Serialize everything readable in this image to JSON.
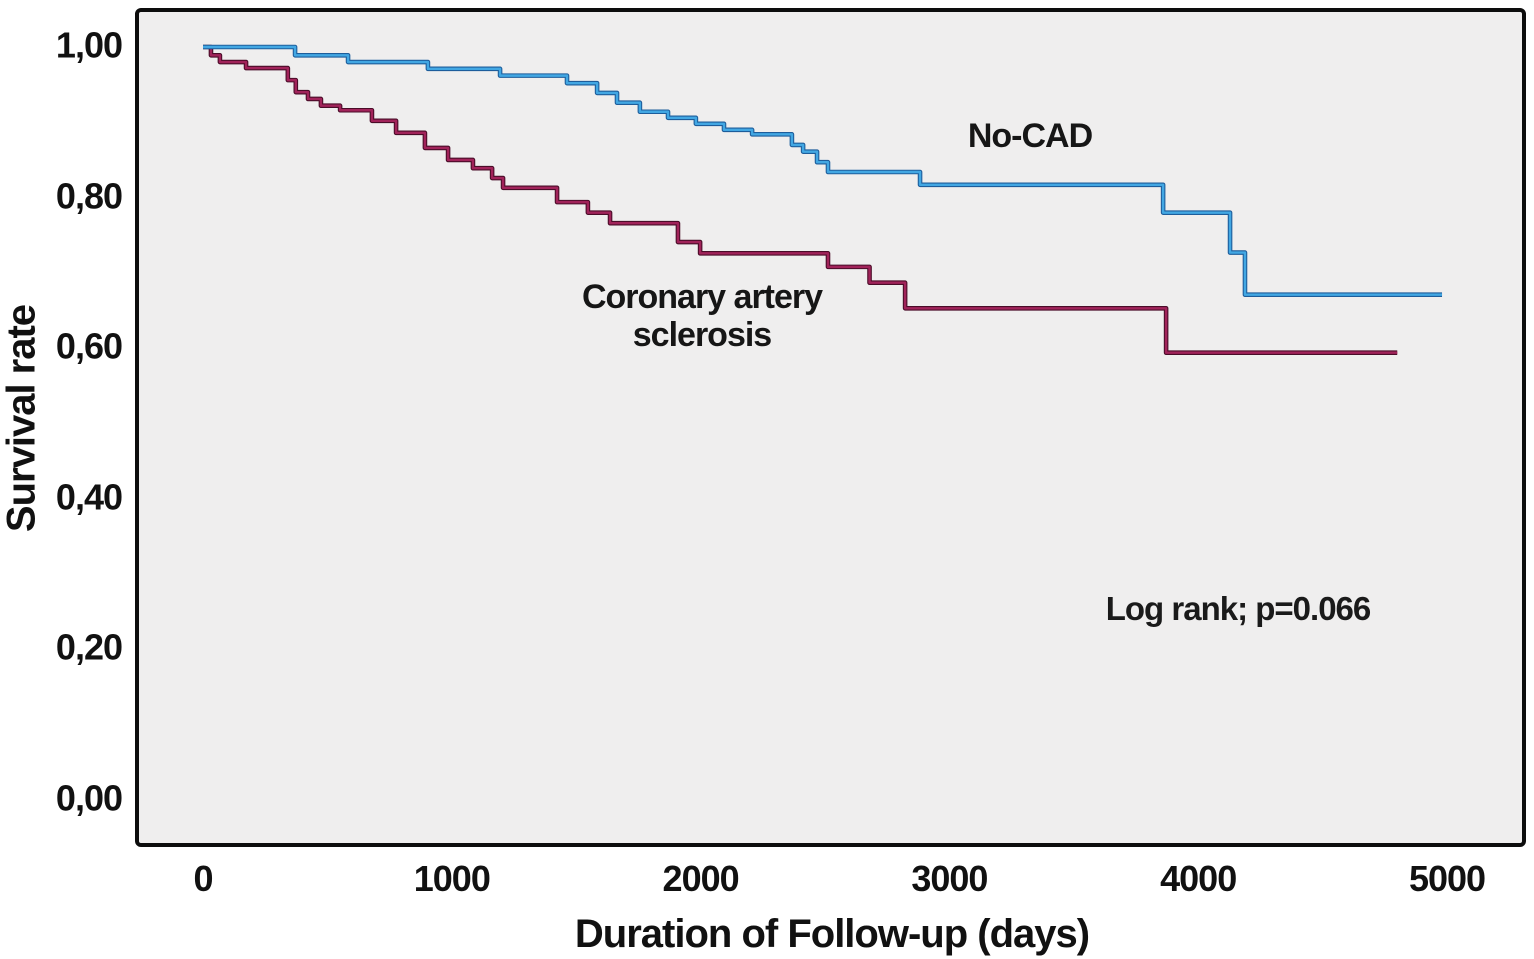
{
  "colors": {
    "plot_background": "#efeeee",
    "frame": "#0d0d0d",
    "text": "#111111",
    "no_cad_line": "#42a7e3",
    "no_cad_edge": "#1d5d9b",
    "cad_line": "#a1235a",
    "cad_edge": "#4a0c28"
  },
  "chart_data": {
    "type": "line",
    "subtype": "kaplan-meier-step",
    "title": "",
    "xlabel": "Duration of Follow-up (days)",
    "ylabel": "Survival rate",
    "xlim": [
      0,
      5000
    ],
    "ylim": [
      0.0,
      1.0
    ],
    "grid": false,
    "legend_position": "inline-labels",
    "x_ticks": {
      "values": [
        0,
        1000,
        2000,
        3000,
        4000,
        5000
      ],
      "labels": [
        "0",
        "1000",
        "2000",
        "3000",
        "4000",
        "5000"
      ]
    },
    "y_ticks": {
      "values": [
        1.0,
        0.8,
        0.6,
        0.4,
        0.2,
        0.0
      ],
      "labels": [
        "1,00",
        "0,80",
        "0,60",
        "0,40",
        "0,20",
        "0,00"
      ]
    },
    "annotation": {
      "text": "Log rank; p=0.066"
    },
    "series_labels": {
      "no_cad": {
        "text": "No-CAD"
      },
      "cad": {
        "line1": "Coronary artery",
        "line2": "sclerosis"
      }
    },
    "series": [
      {
        "name": "Coronary artery sclerosis",
        "color_key": "cad",
        "end_day": 4800,
        "days": [
          0,
          32,
          68,
          173,
          341,
          373,
          422,
          474,
          551,
          679,
          776,
          892,
          985,
          1085,
          1162,
          1206,
          1423,
          1547,
          1636,
          1909,
          1998,
          2512,
          2679,
          2822,
          3871
        ],
        "survival": [
          1.0,
          0.989,
          0.98,
          0.972,
          0.956,
          0.94,
          0.931,
          0.922,
          0.916,
          0.902,
          0.886,
          0.866,
          0.85,
          0.839,
          0.826,
          0.813,
          0.794,
          0.78,
          0.766,
          0.741,
          0.726,
          0.708,
          0.687,
          0.653,
          0.594
        ]
      },
      {
        "name": "No-CAD",
        "color_key": "no_cad",
        "end_day": 4980,
        "days": [
          0,
          370,
          583,
          904,
          1194,
          1463,
          1584,
          1664,
          1756,
          1869,
          1981,
          2094,
          2207,
          2367,
          2412,
          2468,
          2512,
          2882,
          3859,
          4128,
          4188
        ],
        "survival": [
          1.0,
          0.989,
          0.98,
          0.971,
          0.962,
          0.952,
          0.939,
          0.926,
          0.914,
          0.906,
          0.898,
          0.89,
          0.884,
          0.87,
          0.861,
          0.847,
          0.834,
          0.817,
          0.78,
          0.727,
          0.671
        ]
      }
    ]
  }
}
